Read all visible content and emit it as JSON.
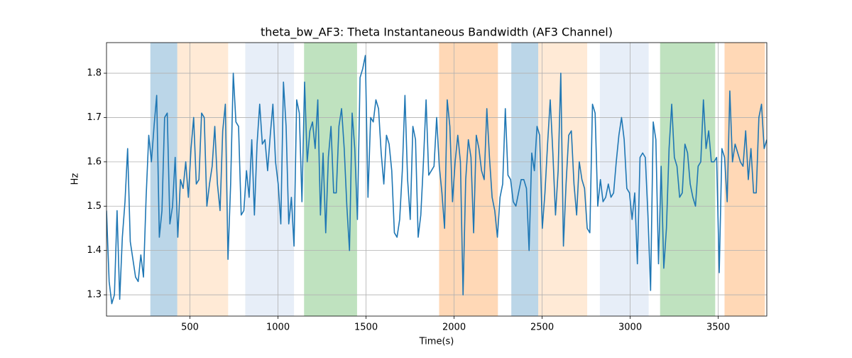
{
  "chart_data": {
    "type": "line",
    "title": "theta_bw_AF3: Theta Instantaneous Bandwidth (AF3 Channel)",
    "xlabel": "Time(s)",
    "ylabel": "Hz",
    "xlim": [
      26,
      3776
    ],
    "ylim": [
      1.252,
      1.869
    ],
    "xticks": [
      500,
      1000,
      1500,
      2000,
      2500,
      3000,
      3500
    ],
    "yticks": [
      1.3,
      1.4,
      1.5,
      1.6,
      1.7,
      1.8
    ],
    "grid": true,
    "span_opacity": 0.3,
    "spans": [
      {
        "start": 275,
        "end": 428,
        "color": "#1f77b4"
      },
      {
        "start": 428,
        "end": 717,
        "color": "#ffbb78"
      },
      {
        "start": 814,
        "end": 1091,
        "color": "#aec7e8"
      },
      {
        "start": 1148,
        "end": 1449,
        "color": "#2ca02c"
      },
      {
        "start": 1915,
        "end": 2249,
        "color": "#ff7f0e"
      },
      {
        "start": 2325,
        "end": 2478,
        "color": "#1f77b4"
      },
      {
        "start": 2478,
        "end": 2756,
        "color": "#ffbb78"
      },
      {
        "start": 2828,
        "end": 3105,
        "color": "#aec7e8"
      },
      {
        "start": 3170,
        "end": 3483,
        "color": "#2ca02c"
      },
      {
        "start": 3536,
        "end": 3765,
        "color": "#ff7f0e"
      }
    ],
    "x": [
      26,
      41,
      56,
      71,
      86,
      101,
      116,
      131,
      146,
      161,
      176,
      191,
      206,
      221,
      236,
      251,
      266,
      281,
      296,
      311,
      326,
      341,
      356,
      371,
      386,
      401,
      416,
      431,
      446,
      461,
      476,
      491,
      506,
      521,
      536,
      551,
      566,
      581,
      596,
      611,
      626,
      641,
      656,
      671,
      686,
      701,
      716,
      731,
      746,
      761,
      776,
      791,
      806,
      821,
      836,
      851,
      866,
      881,
      896,
      911,
      926,
      941,
      956,
      971,
      986,
      1001,
      1016,
      1031,
      1046,
      1061,
      1076,
      1091,
      1106,
      1121,
      1136,
      1151,
      1166,
      1181,
      1196,
      1211,
      1226,
      1241,
      1256,
      1271,
      1286,
      1301,
      1316,
      1331,
      1346,
      1361,
      1376,
      1391,
      1406,
      1421,
      1436,
      1451,
      1466,
      1481,
      1496,
      1511,
      1526,
      1541,
      1556,
      1571,
      1586,
      1601,
      1616,
      1631,
      1646,
      1661,
      1676,
      1691,
      1706,
      1721,
      1736,
      1751,
      1766,
      1781,
      1796,
      1811,
      1826,
      1841,
      1856,
      1871,
      1886,
      1901,
      1916,
      1931,
      1946,
      1961,
      1976,
      1991,
      2006,
      2021,
      2036,
      2051,
      2066,
      2081,
      2096,
      2111,
      2126,
      2141,
      2156,
      2171,
      2186,
      2201,
      2216,
      2231,
      2246,
      2261,
      2276,
      2291,
      2306,
      2321,
      2336,
      2351,
      2366,
      2381,
      2396,
      2411,
      2426,
      2441,
      2456,
      2471,
      2486,
      2501,
      2516,
      2531,
      2546,
      2561,
      2576,
      2591,
      2606,
      2621,
      2636,
      2651,
      2666,
      2681,
      2696,
      2711,
      2726,
      2741,
      2756,
      2771,
      2786,
      2801,
      2816,
      2831,
      2846,
      2861,
      2876,
      2891,
      2906,
      2921,
      2936,
      2951,
      2966,
      2981,
      2996,
      3011,
      3026,
      3041,
      3056,
      3071,
      3086,
      3101,
      3116,
      3131,
      3146,
      3161,
      3176,
      3191,
      3206,
      3221,
      3236,
      3251,
      3266,
      3281,
      3296,
      3311,
      3326,
      3341,
      3356,
      3371,
      3386,
      3401,
      3416,
      3431,
      3446,
      3461,
      3476,
      3491,
      3506,
      3521,
      3536,
      3551,
      3566,
      3581,
      3596,
      3611,
      3626,
      3641,
      3656,
      3671,
      3686,
      3701,
      3716,
      3731,
      3746,
      3761,
      3776
    ],
    "series": [
      {
        "color": "#1f77b4",
        "values": [
          1.49,
          1.33,
          1.28,
          1.3,
          1.49,
          1.29,
          1.43,
          1.51,
          1.63,
          1.42,
          1.38,
          1.34,
          1.33,
          1.39,
          1.34,
          1.52,
          1.66,
          1.6,
          1.68,
          1.75,
          1.43,
          1.49,
          1.7,
          1.71,
          1.46,
          1.5,
          1.61,
          1.43,
          1.56,
          1.54,
          1.6,
          1.52,
          1.63,
          1.7,
          1.55,
          1.56,
          1.71,
          1.7,
          1.5,
          1.55,
          1.59,
          1.68,
          1.55,
          1.49,
          1.67,
          1.73,
          1.38,
          1.55,
          1.8,
          1.69,
          1.68,
          1.48,
          1.49,
          1.58,
          1.52,
          1.65,
          1.48,
          1.64,
          1.73,
          1.64,
          1.65,
          1.58,
          1.66,
          1.73,
          1.6,
          1.55,
          1.46,
          1.78,
          1.68,
          1.46,
          1.52,
          1.41,
          1.74,
          1.71,
          1.51,
          1.78,
          1.6,
          1.67,
          1.69,
          1.63,
          1.74,
          1.48,
          1.62,
          1.44,
          1.61,
          1.68,
          1.53,
          1.53,
          1.68,
          1.72,
          1.63,
          1.5,
          1.4,
          1.71,
          1.63,
          1.47,
          1.79,
          1.81,
          1.84,
          1.52,
          1.7,
          1.69,
          1.74,
          1.72,
          1.62,
          1.55,
          1.66,
          1.64,
          1.58,
          1.44,
          1.43,
          1.47,
          1.58,
          1.75,
          1.56,
          1.47,
          1.68,
          1.65,
          1.43,
          1.48,
          1.6,
          1.74,
          1.57,
          1.58,
          1.59,
          1.7,
          1.59,
          1.53,
          1.45,
          1.74,
          1.68,
          1.51,
          1.6,
          1.66,
          1.6,
          1.3,
          1.56,
          1.65,
          1.61,
          1.44,
          1.66,
          1.63,
          1.58,
          1.56,
          1.72,
          1.61,
          1.52,
          1.49,
          1.43,
          1.52,
          1.55,
          1.72,
          1.57,
          1.56,
          1.51,
          1.5,
          1.53,
          1.56,
          1.56,
          1.54,
          1.4,
          1.62,
          1.58,
          1.68,
          1.66,
          1.45,
          1.53,
          1.64,
          1.74,
          1.62,
          1.48,
          1.58,
          1.8,
          1.41,
          1.55,
          1.66,
          1.67,
          1.55,
          1.48,
          1.6,
          1.56,
          1.54,
          1.45,
          1.44,
          1.73,
          1.71,
          1.5,
          1.56,
          1.51,
          1.52,
          1.55,
          1.52,
          1.53,
          1.6,
          1.66,
          1.7,
          1.65,
          1.54,
          1.53,
          1.47,
          1.53,
          1.37,
          1.61,
          1.62,
          1.61,
          1.48,
          1.31,
          1.69,
          1.65,
          1.37,
          1.59,
          1.36,
          1.45,
          1.63,
          1.73,
          1.61,
          1.59,
          1.52,
          1.53,
          1.64,
          1.62,
          1.55,
          1.52,
          1.5,
          1.59,
          1.6,
          1.74,
          1.63,
          1.67,
          1.6,
          1.6,
          1.61,
          1.35,
          1.63,
          1.61,
          1.51,
          1.76,
          1.6,
          1.64,
          1.62,
          1.6,
          1.59,
          1.67,
          1.56,
          1.63,
          1.53,
          1.53,
          1.7,
          1.73,
          1.63,
          1.65
        ]
      }
    ]
  }
}
